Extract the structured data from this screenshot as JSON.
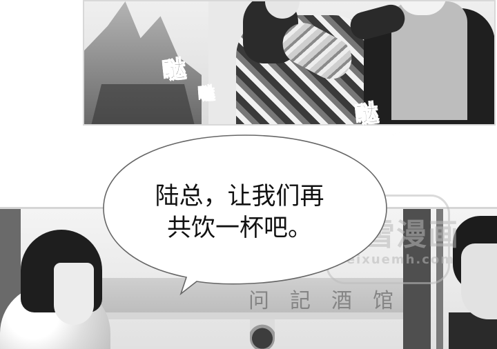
{
  "panels": {
    "top": {
      "sound_effects": [
        {
          "text": "哒"
        },
        {
          "text": "哒"
        },
        {
          "text": "哒"
        },
        {
          "text": "哒"
        }
      ]
    },
    "bottom": {
      "speech_bubble": {
        "lines": [
          "陆总，让我们再",
          "共饮一杯吧。"
        ]
      },
      "banner_chars": [
        "问",
        "記",
        "酒",
        "馆"
      ]
    }
  },
  "watermark": {
    "title": "飞雪漫画",
    "subtitle": "feixuemh.com"
  }
}
